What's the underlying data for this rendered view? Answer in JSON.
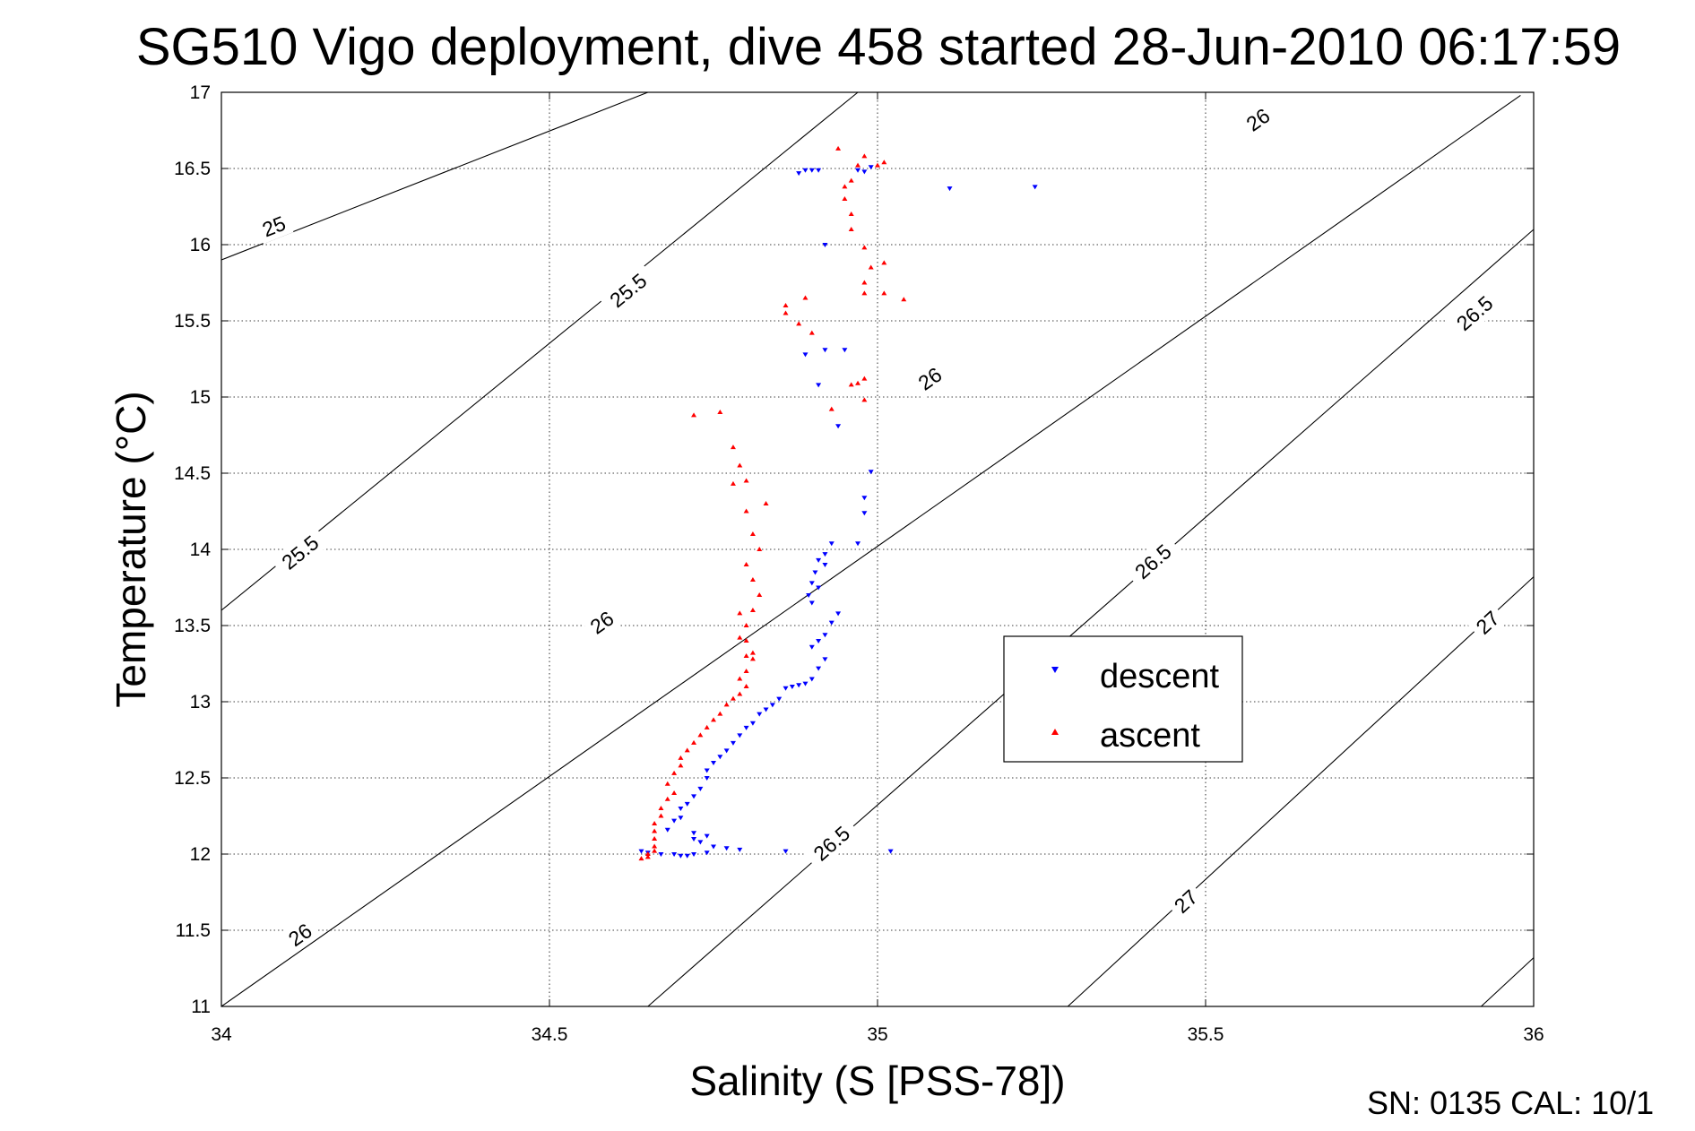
{
  "chart_data": {
    "type": "scatter",
    "title": "SG510 Vigo deployment, dive 458 started 28-Jun-2010 06:17:59",
    "xlabel": "Salinity (S [PSS-78])",
    "ylabel": "Temperature (°C)",
    "xlim": [
      34,
      36
    ],
    "ylim": [
      11,
      17
    ],
    "x_ticks": [
      "34",
      "34.5",
      "35",
      "35.5",
      "36"
    ],
    "y_ticks": [
      "11",
      "11.5",
      "12",
      "12.5",
      "13",
      "13.5",
      "14",
      "14.5",
      "15",
      "15.5",
      "16",
      "16.5",
      "17"
    ],
    "grid": true,
    "legend_position": "center-right",
    "footer": "SN: 0135  CAL: 10/1",
    "colors": {
      "descent": "#0000ff",
      "ascent": "#ff0000",
      "contour": "#000000"
    },
    "contours": [
      {
        "sigma": 25.0,
        "S0": 34.0,
        "T0": 15.9,
        "S1": 34.65,
        "T1": 17.0,
        "label": "25",
        "label_at": [
          34.08,
          16.12
        ]
      },
      {
        "sigma": 25.5,
        "S0": 34.0,
        "T0": 13.6,
        "S1": 34.97,
        "T1": 17.0,
        "label": "25.5",
        "label_at": [
          34.12,
          13.98
        ],
        "label2": "25.5",
        "label2_at": [
          34.62,
          15.7
        ]
      },
      {
        "sigma": 26.0,
        "S0": 34.0,
        "T0": 11.0,
        "S1": 35.98,
        "T1": 16.98,
        "label": "26",
        "label_at": [
          34.12,
          11.47
        ],
        "label2": "26",
        "label2_at": [
          34.58,
          13.52
        ],
        "label3": "26",
        "label3_at": [
          35.08,
          15.12
        ],
        "label4": "26",
        "label4_at": [
          35.58,
          16.82
        ]
      },
      {
        "sigma": 26.5,
        "S0": 34.65,
        "T0": 11.0,
        "S1": 36.0,
        "T1": 16.1,
        "label": "26.5",
        "label_at": [
          34.93,
          12.07
        ],
        "label2": "26.5",
        "label2_at": [
          35.42,
          13.92
        ],
        "label3": "26.5",
        "label3_at": [
          35.91,
          15.55
        ]
      },
      {
        "sigma": 27.0,
        "S0": 35.29,
        "T0": 11.0,
        "S1": 36.0,
        "T1": 13.82,
        "label": "27",
        "label_at": [
          35.47,
          11.69
        ],
        "label2": "27",
        "label2_at": [
          35.93,
          13.52
        ]
      },
      {
        "sigma": 27.5,
        "S0": 35.92,
        "T0": 11.0,
        "S1": 36.0,
        "T1": 11.32
      }
    ],
    "series": [
      {
        "name": "descent",
        "marker": "down-triangle",
        "points": [
          [
            34.88,
            16.47
          ],
          [
            34.89,
            16.49
          ],
          [
            34.9,
            16.49
          ],
          [
            34.91,
            16.49
          ],
          [
            34.97,
            16.49
          ],
          [
            34.98,
            16.48
          ],
          [
            34.99,
            16.51
          ],
          [
            35.11,
            16.37
          ],
          [
            35.24,
            16.38
          ],
          [
            34.92,
            16.0
          ],
          [
            34.89,
            15.28
          ],
          [
            34.92,
            15.31
          ],
          [
            34.95,
            15.31
          ],
          [
            34.91,
            15.08
          ],
          [
            34.94,
            14.81
          ],
          [
            34.99,
            14.51
          ],
          [
            34.98,
            14.34
          ],
          [
            34.98,
            14.24
          ],
          [
            34.97,
            14.04
          ],
          [
            34.93,
            14.04
          ],
          [
            34.92,
            13.97
          ],
          [
            34.91,
            13.93
          ],
          [
            34.905,
            13.85
          ],
          [
            34.9,
            13.78
          ],
          [
            34.895,
            13.7
          ],
          [
            34.9,
            13.65
          ],
          [
            34.91,
            13.75
          ],
          [
            34.92,
            13.9
          ],
          [
            34.94,
            13.58
          ],
          [
            34.93,
            13.52
          ],
          [
            34.92,
            13.44
          ],
          [
            34.91,
            13.4
          ],
          [
            34.9,
            13.36
          ],
          [
            34.92,
            13.28
          ],
          [
            34.91,
            13.22
          ],
          [
            34.9,
            13.15
          ],
          [
            34.89,
            13.12
          ],
          [
            34.88,
            13.11
          ],
          [
            34.87,
            13.1
          ],
          [
            34.86,
            13.09
          ],
          [
            34.85,
            13.02
          ],
          [
            34.84,
            12.98
          ],
          [
            34.83,
            12.95
          ],
          [
            34.82,
            12.92
          ],
          [
            34.81,
            12.86
          ],
          [
            34.8,
            12.83
          ],
          [
            34.79,
            12.78
          ],
          [
            34.78,
            12.73
          ],
          [
            34.77,
            12.68
          ],
          [
            34.76,
            12.64
          ],
          [
            34.75,
            12.6
          ],
          [
            34.74,
            12.55
          ],
          [
            34.74,
            12.5
          ],
          [
            34.73,
            12.43
          ],
          [
            34.72,
            12.38
          ],
          [
            34.71,
            12.33
          ],
          [
            34.7,
            12.3
          ],
          [
            34.7,
            12.24
          ],
          [
            34.69,
            12.22
          ],
          [
            34.68,
            12.16
          ],
          [
            34.72,
            12.14
          ],
          [
            34.74,
            12.12
          ],
          [
            34.73,
            12.08
          ],
          [
            34.72,
            12.1
          ],
          [
            34.64,
            12.02
          ],
          [
            34.65,
            12.01
          ],
          [
            34.67,
            12.0
          ],
          [
            34.69,
            12.0
          ],
          [
            34.7,
            11.99
          ],
          [
            34.71,
            11.99
          ],
          [
            34.72,
            12.0
          ],
          [
            34.74,
            12.01
          ],
          [
            34.75,
            12.05
          ],
          [
            34.77,
            12.04
          ],
          [
            34.79,
            12.03
          ],
          [
            34.86,
            12.02
          ],
          [
            35.02,
            12.02
          ]
        ]
      },
      {
        "name": "ascent",
        "marker": "up-triangle",
        "points": [
          [
            34.94,
            16.63
          ],
          [
            34.98,
            16.58
          ],
          [
            34.97,
            16.52
          ],
          [
            35.0,
            16.52
          ],
          [
            35.01,
            16.54
          ],
          [
            34.96,
            16.42
          ],
          [
            34.95,
            16.38
          ],
          [
            34.95,
            16.3
          ],
          [
            34.96,
            16.2
          ],
          [
            34.96,
            16.1
          ],
          [
            34.98,
            15.98
          ],
          [
            34.99,
            15.85
          ],
          [
            35.01,
            15.88
          ],
          [
            34.98,
            15.75
          ],
          [
            34.98,
            15.68
          ],
          [
            35.01,
            15.68
          ],
          [
            35.04,
            15.64
          ],
          [
            34.89,
            15.65
          ],
          [
            34.86,
            15.6
          ],
          [
            34.86,
            15.55
          ],
          [
            34.88,
            15.48
          ],
          [
            34.9,
            15.42
          ],
          [
            34.98,
            15.12
          ],
          [
            34.97,
            15.09
          ],
          [
            34.96,
            15.08
          ],
          [
            34.98,
            14.98
          ],
          [
            34.93,
            14.92
          ],
          [
            34.72,
            14.88
          ],
          [
            34.76,
            14.9
          ],
          [
            34.78,
            14.67
          ],
          [
            34.79,
            14.55
          ],
          [
            34.8,
            14.45
          ],
          [
            34.78,
            14.43
          ],
          [
            34.8,
            14.25
          ],
          [
            34.83,
            14.3
          ],
          [
            34.81,
            14.1
          ],
          [
            34.82,
            14.0
          ],
          [
            34.8,
            13.9
          ],
          [
            34.81,
            13.8
          ],
          [
            34.82,
            13.7
          ],
          [
            34.81,
            13.6
          ],
          [
            34.79,
            13.58
          ],
          [
            34.8,
            13.5
          ],
          [
            34.79,
            13.42
          ],
          [
            34.8,
            13.4
          ],
          [
            34.8,
            13.3
          ],
          [
            34.81,
            13.32
          ],
          [
            34.81,
            13.28
          ],
          [
            34.79,
            13.15
          ],
          [
            34.8,
            13.2
          ],
          [
            34.8,
            13.1
          ],
          [
            34.79,
            13.05
          ],
          [
            34.78,
            13.02
          ],
          [
            34.77,
            12.98
          ],
          [
            34.76,
            12.92
          ],
          [
            34.75,
            12.88
          ],
          [
            34.74,
            12.83
          ],
          [
            34.73,
            12.78
          ],
          [
            34.72,
            12.73
          ],
          [
            34.71,
            12.68
          ],
          [
            34.7,
            12.63
          ],
          [
            34.7,
            12.58
          ],
          [
            34.69,
            12.53
          ],
          [
            34.68,
            12.46
          ],
          [
            34.69,
            12.4
          ],
          [
            34.68,
            12.36
          ],
          [
            34.67,
            12.3
          ],
          [
            34.67,
            12.25
          ],
          [
            34.66,
            12.2
          ],
          [
            34.66,
            12.15
          ],
          [
            34.66,
            12.1
          ],
          [
            34.66,
            12.05
          ],
          [
            34.66,
            12.02
          ],
          [
            34.65,
            12.0
          ],
          [
            34.65,
            11.98
          ],
          [
            34.64,
            11.97
          ]
        ]
      }
    ]
  }
}
